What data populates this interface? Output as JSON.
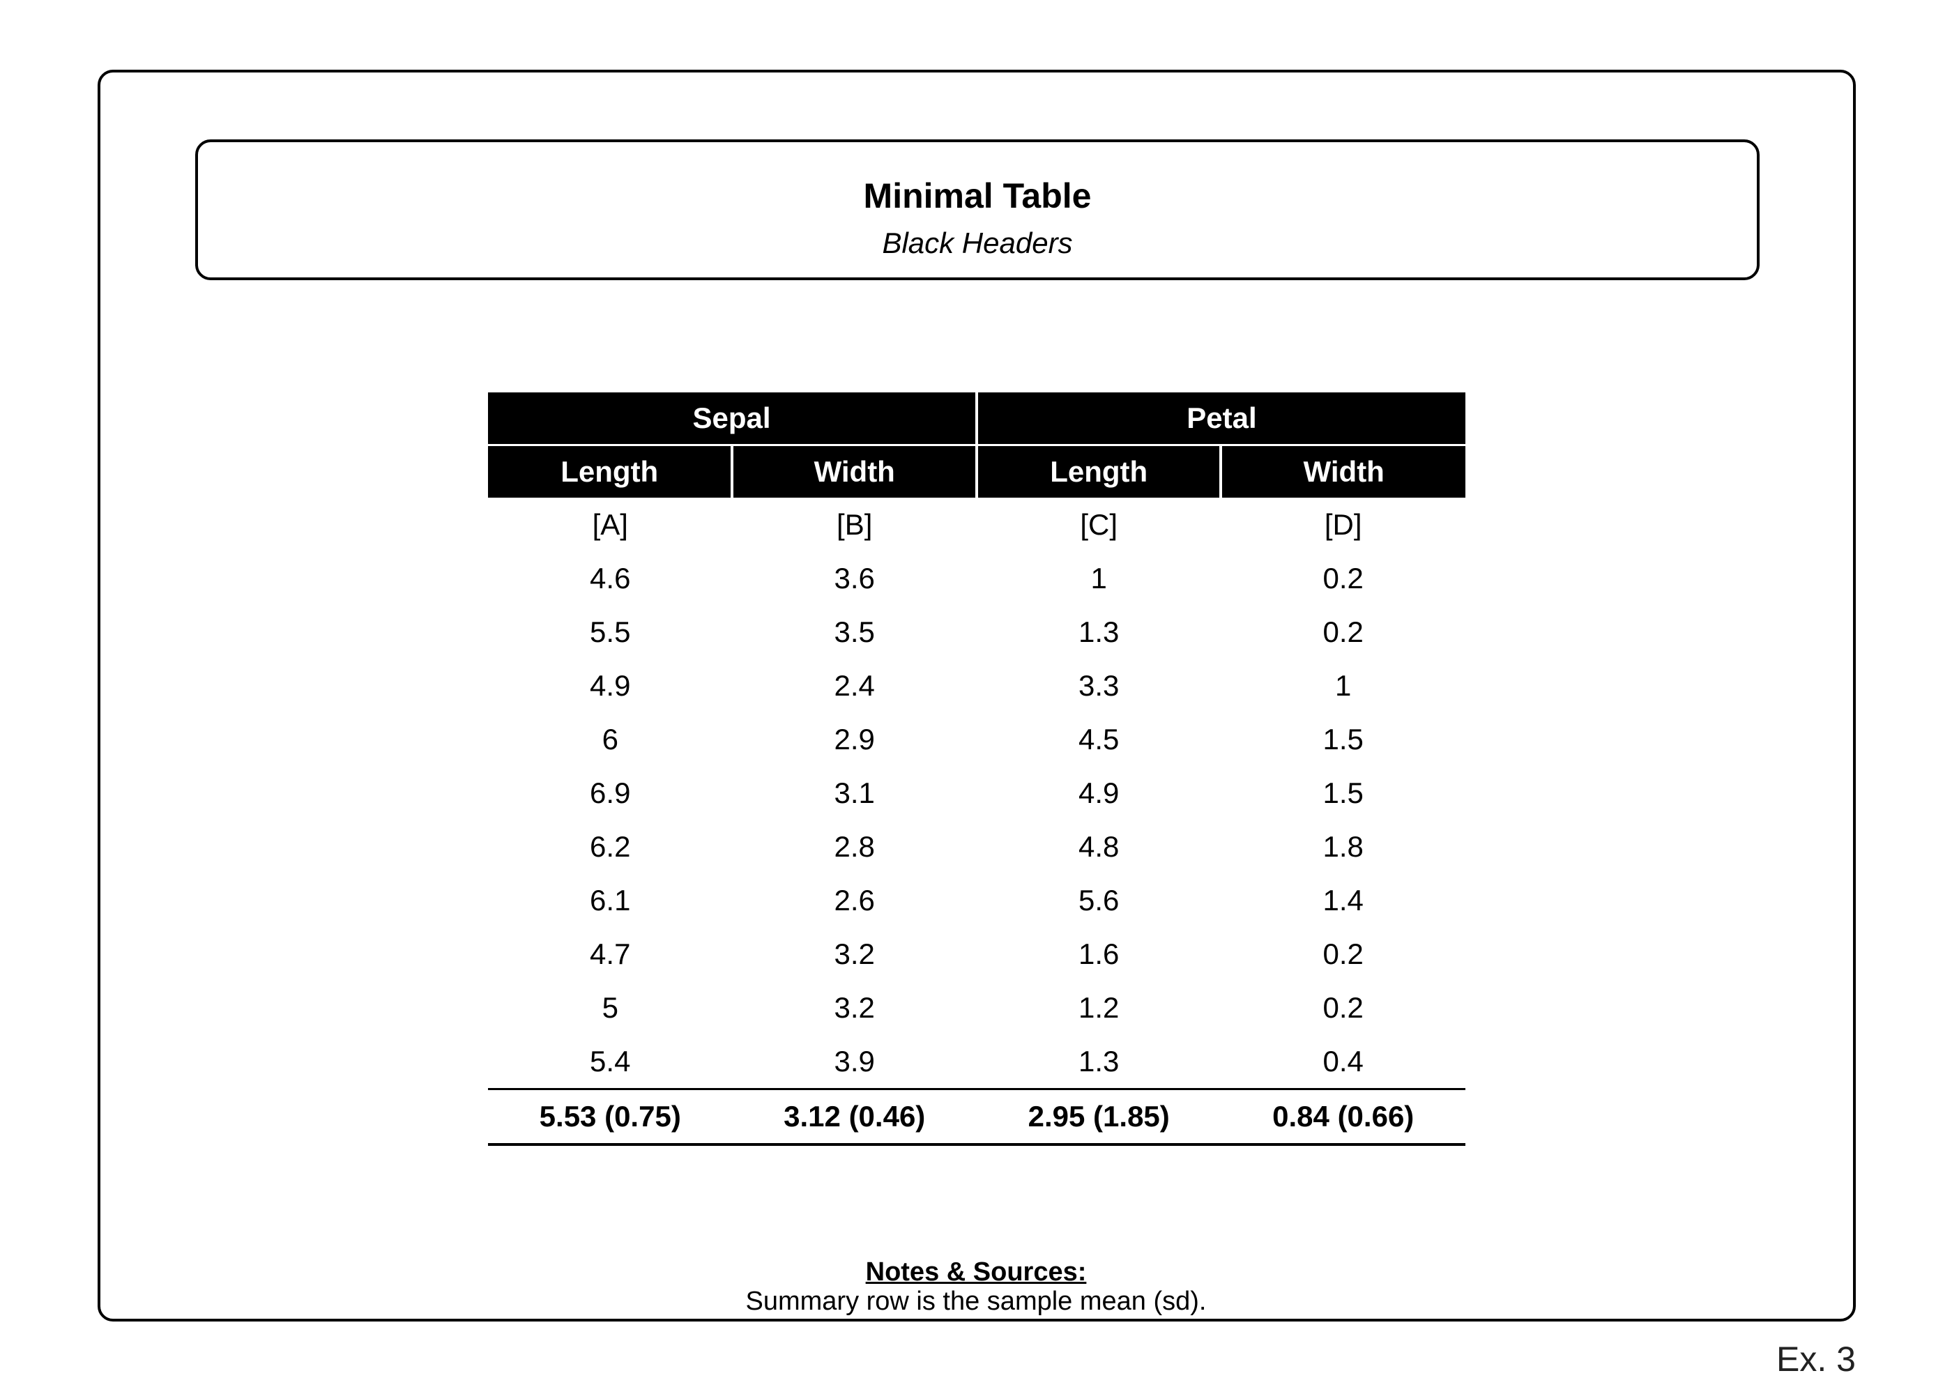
{
  "title": "Minimal Table",
  "subtitle": "Black Headers",
  "table": {
    "group_headers": [
      "Sepal",
      "Petal"
    ],
    "column_headers": [
      "Length",
      "Width",
      "Length",
      "Width"
    ],
    "rows": [
      [
        "[A]",
        "[B]",
        "[C]",
        "[D]"
      ],
      [
        "4.6",
        "3.6",
        "1",
        "0.2"
      ],
      [
        "5.5",
        "3.5",
        "1.3",
        "0.2"
      ],
      [
        "4.9",
        "2.4",
        "3.3",
        "1"
      ],
      [
        "6",
        "2.9",
        "4.5",
        "1.5"
      ],
      [
        "6.9",
        "3.1",
        "4.9",
        "1.5"
      ],
      [
        "6.2",
        "2.8",
        "4.8",
        "1.8"
      ],
      [
        "6.1",
        "2.6",
        "5.6",
        "1.4"
      ],
      [
        "4.7",
        "3.2",
        "1.6",
        "0.2"
      ],
      [
        "5",
        "3.2",
        "1.2",
        "0.2"
      ],
      [
        "5.4",
        "3.9",
        "1.3",
        "0.4"
      ]
    ],
    "summary": [
      "5.53 (0.75)",
      "3.12 (0.46)",
      "2.95 (1.85)",
      "0.84 (0.66)"
    ]
  },
  "notes": {
    "heading": "Notes & Sources:",
    "text": "Summary row is the sample mean (sd)."
  },
  "exhibit_label": "Ex. 3"
}
